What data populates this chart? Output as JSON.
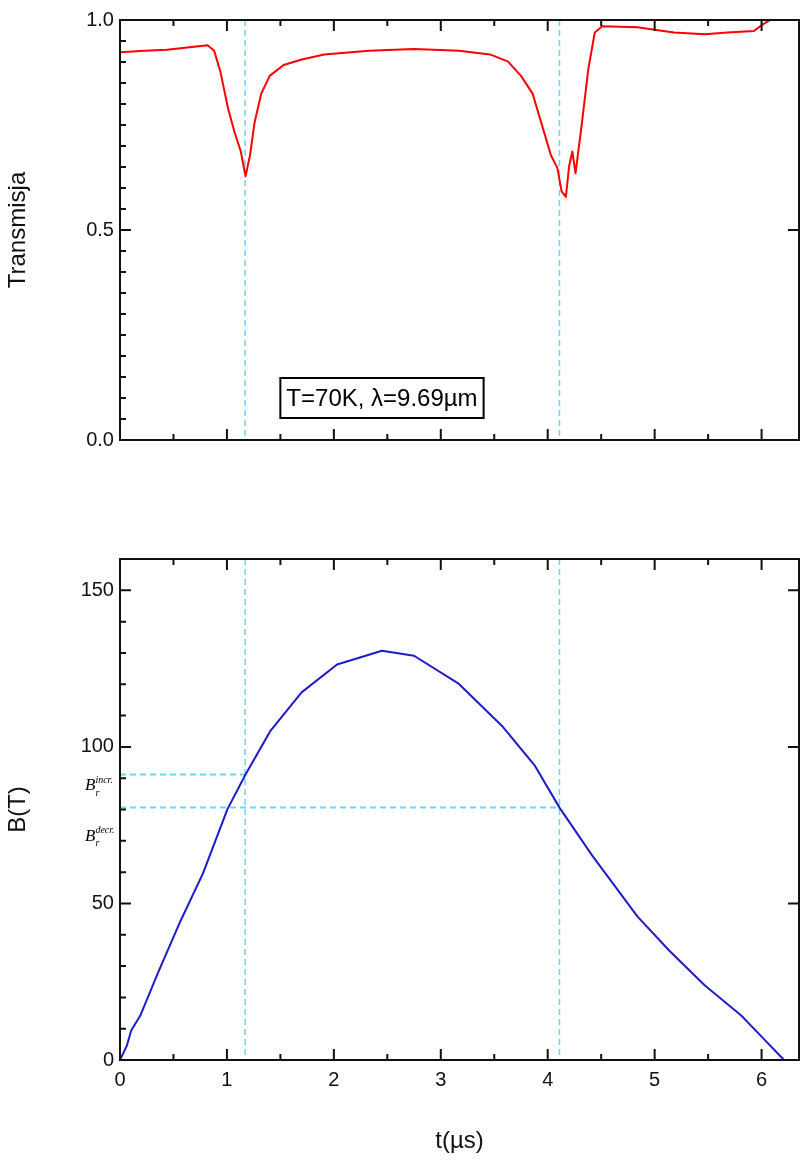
{
  "chart_data": [
    {
      "type": "line",
      "ylabel": "Transmisja",
      "xlim": [
        0,
        6.35
      ],
      "ylim": [
        0,
        1
      ],
      "xticks": [
        0,
        {
          "value": 0.5,
          "label": null
        },
        1,
        {
          "value": 1.5,
          "label": null
        },
        2,
        {
          "value": 2.5,
          "label": null
        },
        3,
        {
          "value": 3.5,
          "label": null
        },
        4,
        {
          "value": 4.5,
          "label": null
        },
        5,
        {
          "value": 5.5,
          "label": null
        },
        6
      ],
      "yticks": [
        {
          "value": 0,
          "label": "0.0"
        },
        {
          "value": 0.05,
          "label": null
        },
        {
          "value": 0.1,
          "label": null
        },
        {
          "value": 0.15,
          "label": null
        },
        {
          "value": 0.2,
          "label": null
        },
        {
          "value": 0.25,
          "label": null
        },
        {
          "value": 0.3,
          "label": null
        },
        {
          "value": 0.35,
          "label": null
        },
        {
          "value": 0.4,
          "label": null
        },
        {
          "value": 0.45,
          "label": null
        },
        {
          "value": 0.5,
          "label": "0.5"
        },
        {
          "value": 0.55,
          "label": null
        },
        {
          "value": 0.6,
          "label": null
        },
        {
          "value": 0.65,
          "label": null
        },
        {
          "value": 0.7,
          "label": null
        },
        {
          "value": 0.75,
          "label": null
        },
        {
          "value": 0.8,
          "label": null
        },
        {
          "value": 0.85,
          "label": null
        },
        {
          "value": 0.9,
          "label": null
        },
        {
          "value": 0.95,
          "label": null
        },
        {
          "value": 1,
          "label": "1.0"
        }
      ],
      "tick_labels": "y",
      "series": [
        {
          "color": "#ff0000",
          "x": [
            0,
            0.23,
            0.44,
            0.65,
            0.82,
            0.88,
            0.94,
            1.01,
            1.07,
            1.13,
            1.174,
            1.216,
            1.258,
            1.32,
            1.4,
            1.53,
            1.7,
            1.91,
            2.33,
            2.75,
            3.17,
            3.46,
            3.63,
            3.75,
            3.86,
            3.94,
            4.03,
            4.09,
            4.13,
            4.17,
            4.2,
            4.23,
            4.26,
            4.32,
            4.38,
            4.44,
            4.51,
            4.84,
            5.18,
            5.47,
            5.68,
            5.93,
            6.02,
            6.08
          ],
          "values": [
            0.923,
            0.927,
            0.929,
            0.935,
            0.94,
            0.927,
            0.876,
            0.79,
            0.734,
            0.687,
            0.628,
            0.678,
            0.755,
            0.824,
            0.867,
            0.893,
            0.906,
            0.918,
            0.927,
            0.931,
            0.927,
            0.918,
            0.901,
            0.867,
            0.824,
            0.755,
            0.678,
            0.648,
            0.592,
            0.579,
            0.652,
            0.687,
            0.635,
            0.755,
            0.884,
            0.97,
            0.985,
            0.983,
            0.97,
            0.966,
            0.97,
            0.974,
            0.991,
            1.0
          ]
        }
      ],
      "ref_lines": [
        {
          "axis": "x",
          "value": 1.17,
          "color": "#66d9ee",
          "line_style": "dashed"
        },
        {
          "axis": "x",
          "value": 4.11,
          "color": "#66d9ee",
          "line_style": "dashed"
        }
      ],
      "annotations": [
        "T=70K, λ=9.69µm"
      ]
    },
    {
      "type": "line",
      "xlabel": "t(µs)",
      "ylabel": "B(T)",
      "xlim": [
        0,
        6.35
      ],
      "ylim": [
        0,
        160
      ],
      "xticks": [
        0,
        {
          "value": 0.5,
          "label": null
        },
        1,
        {
          "value": 1.5,
          "label": null
        },
        2,
        {
          "value": 2.5,
          "label": null
        },
        3,
        {
          "value": 3.5,
          "label": null
        },
        4,
        {
          "value": 4.5,
          "label": null
        },
        5,
        {
          "value": 5.5,
          "label": null
        },
        6
      ],
      "yticks": [
        0,
        {
          "value": 10,
          "label": null
        },
        {
          "value": 20,
          "label": null
        },
        {
          "value": 30,
          "label": null
        },
        {
          "value": 40,
          "label": null
        },
        50,
        {
          "value": 60,
          "label": null
        },
        {
          "value": 70,
          "label": null
        },
        {
          "value": 80,
          "label": null
        },
        {
          "value": 90,
          "label": null
        },
        100,
        {
          "value": 110,
          "label": null
        },
        {
          "value": 120,
          "label": null
        },
        {
          "value": 130,
          "label": null
        },
        {
          "value": 140,
          "label": null
        },
        150
      ],
      "series": [
        {
          "color": "#1c1cc8",
          "x": [
            0,
            0.063,
            0.105,
            0.19,
            0.356,
            0.566,
            0.776,
            1.006,
            1.174,
            1.405,
            1.698,
            2.03,
            2.45,
            2.75,
            3.17,
            3.58,
            3.88,
            4.11,
            4.42,
            4.84,
            5.14,
            5.47,
            5.81,
            6.21
          ],
          "values": [
            0,
            4.5,
            9.4,
            14.2,
            27.9,
            44.4,
            59.6,
            80.2,
            91.2,
            105,
            117.4,
            126.3,
            130.7,
            129.1,
            120.1,
            106.4,
            94,
            80.6,
            65.1,
            45.8,
            34.8,
            23.8,
            14.2,
            0
          ]
        },
        {
          "type": "line",
          "color": "#66d9ee",
          "line_style": "dashed",
          "x": [
            0,
            1.174
          ],
          "values": [
            91.2,
            91.2
          ]
        },
        {
          "type": "line",
          "color": "#66d9ee",
          "line_style": "dashed",
          "x": [
            0,
            4.11
          ],
          "values": [
            80.6,
            80.6
          ]
        }
      ],
      "ref_lines": [
        {
          "axis": "x",
          "value": 1.17,
          "color": "#66d9ee",
          "line_style": "dashed"
        },
        {
          "axis": "x",
          "value": 4.11,
          "color": "#66d9ee",
          "line_style": "dashed"
        }
      ],
      "annotations": [
        "B$_{r}$$^{incr.}$",
        "B$_{r}$$^{decr.}$"
      ]
    }
  ]
}
